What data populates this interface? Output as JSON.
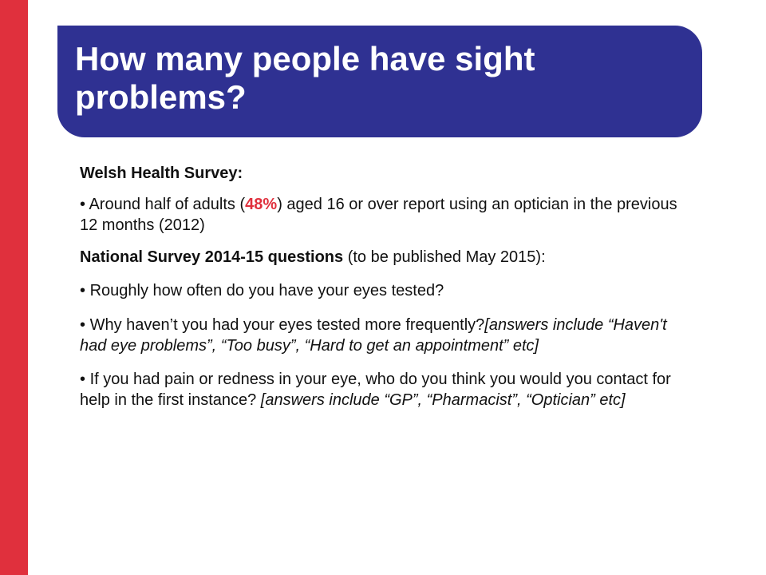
{
  "slide": {
    "title": "How many people have sight problems?",
    "colors": {
      "side_bar": "#e0303d",
      "title_background": "#2f3192",
      "accent": "#e0303d"
    }
  },
  "content": {
    "section1": {
      "heading": "Welsh Health Survey:",
      "bullet1": {
        "marker": "•",
        "pre": "Around half of adults (",
        "highlight": "48%",
        "post": ") aged 16 or over report using an optician in the previous 12 months (2012)"
      }
    },
    "section2": {
      "heading_bold": "National Survey 2014-15 questions",
      "heading_rest": " (to be published May 2015):",
      "bullet1": {
        "marker": "•",
        "text": "Roughly how often do you have your eyes tested?"
      },
      "bullet2": {
        "marker": "•",
        "text": "Why haven’t you had your eyes tested more frequently?",
        "italic": "[answers include “Haven't had eye problems”, “Too busy”, “Hard to get an appointment” etc]"
      },
      "bullet3": {
        "marker": "•",
        "text": "If you had pain or redness in your eye, who do you think you would you contact for help in the first instance? ",
        "italic": "[answers include “GP”, “Pharmacist”, “Optician” etc]"
      }
    }
  }
}
